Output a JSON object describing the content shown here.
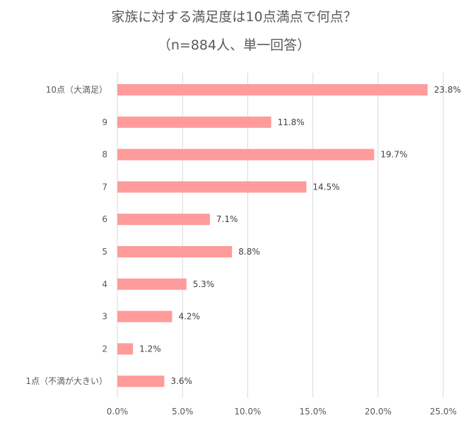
{
  "chart_data": {
    "type": "bar",
    "orientation": "horizontal",
    "title": "家族に対する満足度は10点満点で何点？",
    "subtitle": "（n=884人、単一回答）",
    "categories": [
      "10点（大満足）",
      "9",
      "8",
      "7",
      "6",
      "5",
      "4",
      "3",
      "2",
      "1点（不満が大きい）"
    ],
    "values": [
      23.8,
      11.8,
      19.7,
      14.5,
      7.1,
      8.8,
      5.3,
      4.2,
      1.2,
      3.6
    ],
    "data_labels": [
      "23.8%",
      "11.8%",
      "19.7%",
      "14.5%",
      "7.1%",
      "8.8%",
      "5.3%",
      "4.2%",
      "1.2%",
      "3.6%"
    ],
    "x_ticks": [
      "0.0%",
      "5.0%",
      "10.0%",
      "15.0%",
      "20.0%",
      "25.0%"
    ],
    "xlim": [
      0,
      25
    ],
    "grid": true,
    "legend": "none",
    "colors": {
      "bar": "#FF9B9B",
      "grid": "#D9D9D9",
      "text": "#595959",
      "label": "#404040"
    }
  }
}
